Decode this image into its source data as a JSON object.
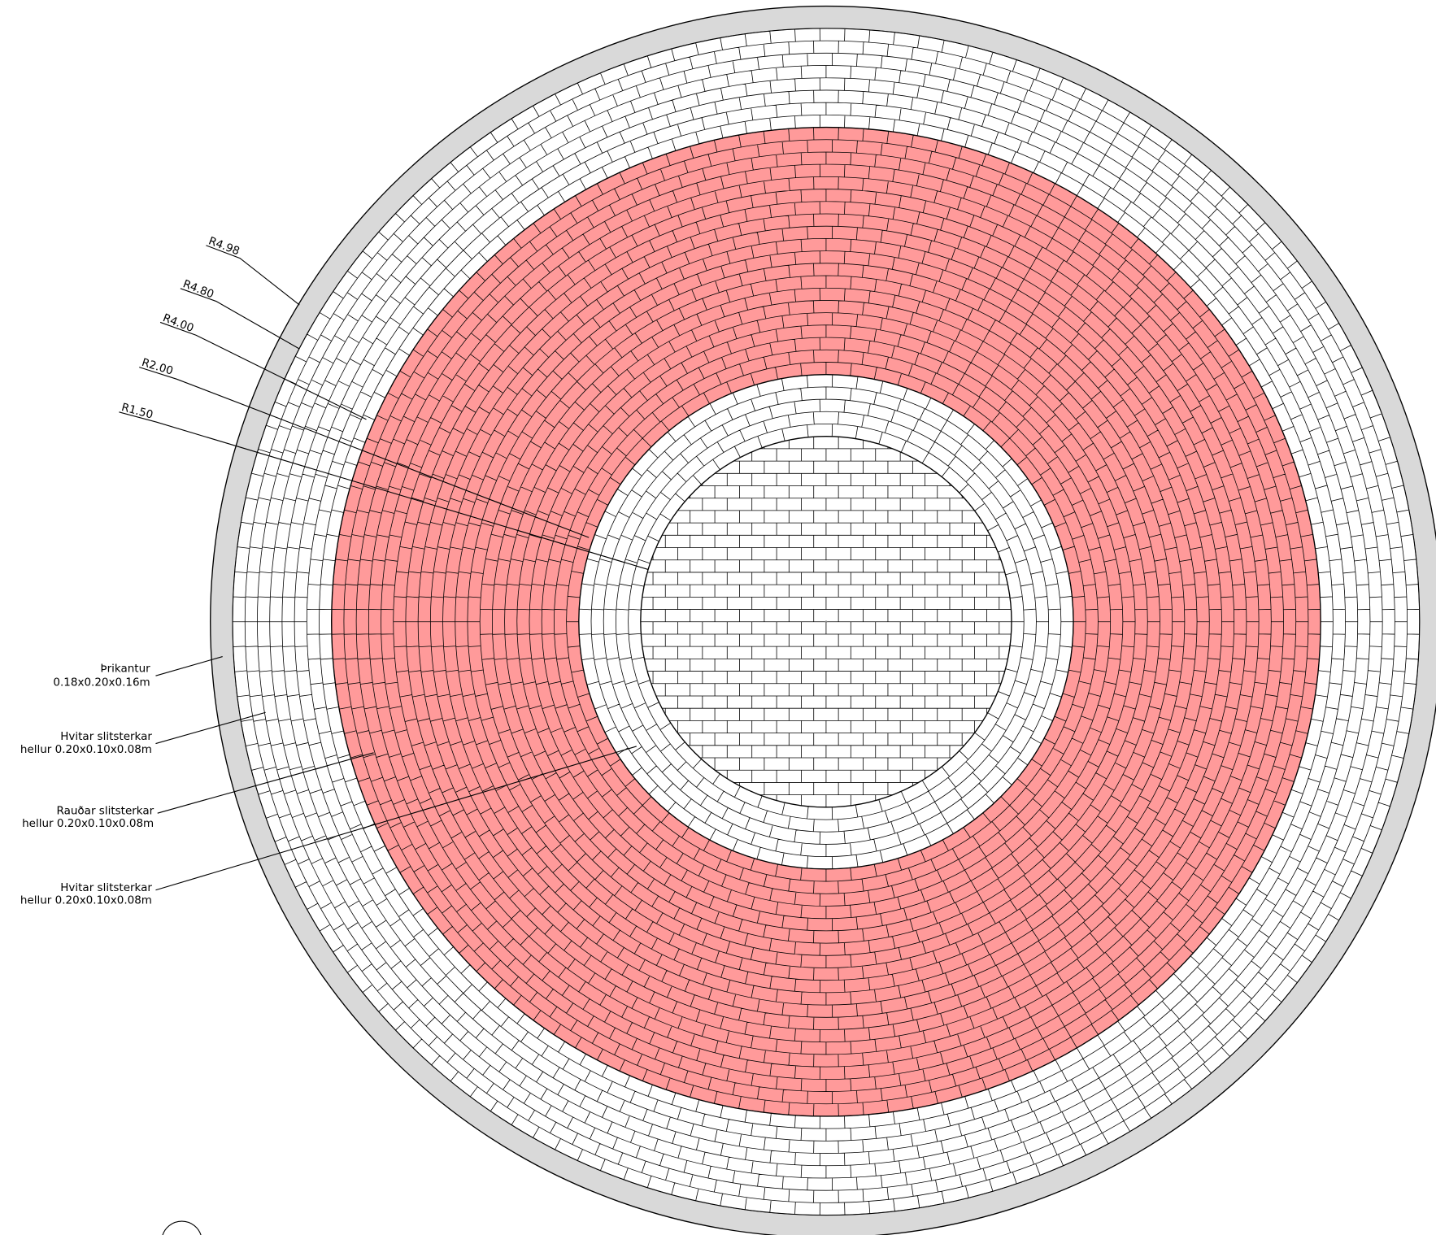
{
  "dimensions": [
    {
      "label": "R4.98"
    },
    {
      "label": "R4.80"
    },
    {
      "label": "R4.00"
    },
    {
      "label": "R2.00"
    },
    {
      "label": "R1.50"
    }
  ],
  "callouts": [
    {
      "lines": [
        "Þrikantur",
        "0.18x0.20x0.16m"
      ]
    },
    {
      "lines": [
        "Hvitar  slitsterkar",
        "hellur  0.20x0.10x0.08m"
      ]
    },
    {
      "lines": [
        "Rauðar  slitsterkar",
        "hellur  0.20x0.10x0.08m"
      ]
    },
    {
      "lines": [
        "Hvitar  slitsterkar",
        "hellur  0.20x0.10x0.08m"
      ]
    }
  ]
}
